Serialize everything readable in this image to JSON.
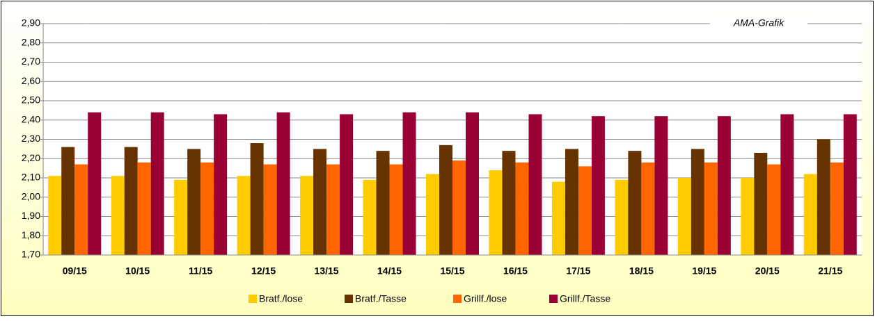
{
  "chart_data": {
    "type": "bar",
    "annotation": "AMA-Grafik",
    "categories": [
      "09/15",
      "10/15",
      "11/15",
      "12/15",
      "13/15",
      "14/15",
      "15/15",
      "16/15",
      "17/15",
      "18/15",
      "19/15",
      "20/15",
      "21/15"
    ],
    "series": [
      {
        "name": "Bratf./lose",
        "color": "#ffcc00",
        "values": [
          2.11,
          2.11,
          2.09,
          2.11,
          2.11,
          2.09,
          2.12,
          2.14,
          2.08,
          2.09,
          2.1,
          2.1,
          2.12
        ]
      },
      {
        "name": "Bratf./Tasse",
        "color": "#663300",
        "values": [
          2.26,
          2.26,
          2.25,
          2.28,
          2.25,
          2.24,
          2.27,
          2.24,
          2.25,
          2.24,
          2.25,
          2.23,
          2.3
        ]
      },
      {
        "name": "Grillf./lose",
        "color": "#ff6600",
        "values": [
          2.17,
          2.18,
          2.18,
          2.17,
          2.17,
          2.17,
          2.19,
          2.18,
          2.16,
          2.18,
          2.18,
          2.17,
          2.18
        ]
      },
      {
        "name": "Grillf./Tasse",
        "color": "#990033",
        "values": [
          2.44,
          2.44,
          2.43,
          2.44,
          2.43,
          2.44,
          2.44,
          2.43,
          2.42,
          2.42,
          2.42,
          2.43,
          2.43
        ]
      }
    ],
    "ylim": [
      1.7,
      2.9
    ],
    "yticks": [
      {
        "value": 1.7,
        "label": "1,70"
      },
      {
        "value": 1.8,
        "label": "1,80"
      },
      {
        "value": 1.9,
        "label": "1,90"
      },
      {
        "value": 2.0,
        "label": "2,00"
      },
      {
        "value": 2.1,
        "label": "2,10"
      },
      {
        "value": 2.2,
        "label": "2,20"
      },
      {
        "value": 2.3,
        "label": "2,30"
      },
      {
        "value": 2.4,
        "label": "2,40"
      },
      {
        "value": 2.5,
        "label": "2,50"
      },
      {
        "value": 2.6,
        "label": "2,60"
      },
      {
        "value": 2.7,
        "label": "2,70"
      },
      {
        "value": 2.8,
        "label": "2,80"
      },
      {
        "value": 2.9,
        "label": "2,90"
      }
    ],
    "grid": true
  }
}
